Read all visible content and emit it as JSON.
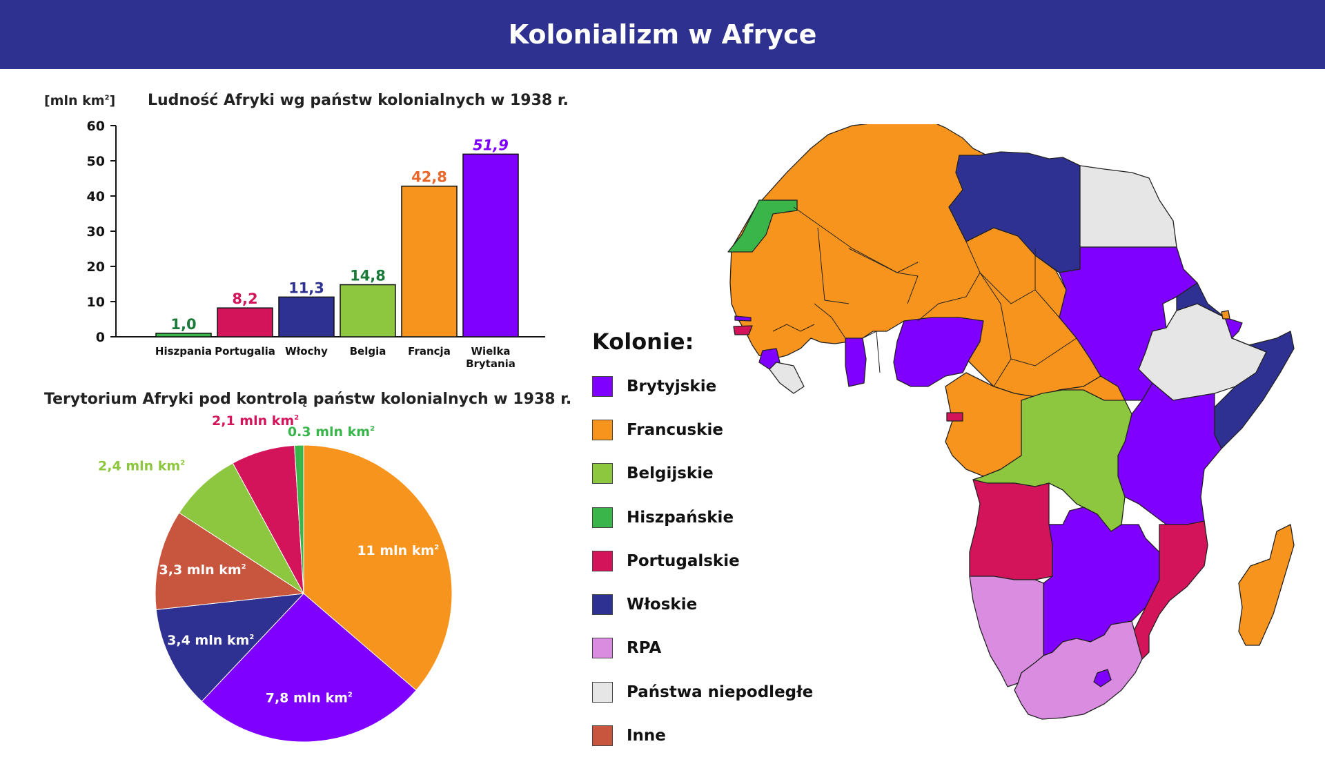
{
  "header": {
    "title": "Kolonializm w Afryce"
  },
  "bar_chart": {
    "unit_label": "[mln km",
    "unit_sup": "2",
    "unit_close": "]"
  },
  "pie_chart": {},
  "colors": {
    "header": "#2e318f",
    "brytyjskie": "#7f00ff",
    "francuskie": "#f7941d",
    "belgijskie": "#8dc63f",
    "hiszpanskie": "#39b54a",
    "portugalskie": "#d4145a",
    "wloskie": "#2e3192",
    "rpa": "#d98ce0",
    "niepodlegle": "#e6e6e6",
    "inne": "#c8553d"
  },
  "legend": {
    "title": "Kolonie:",
    "items": [
      {
        "label": "Brytyjskie",
        "color": "#7f00ff"
      },
      {
        "label": "Francuskie",
        "color": "#f7941d"
      },
      {
        "label": "Belgijskie",
        "color": "#8dc63f"
      },
      {
        "label": "Hiszpańskie",
        "color": "#39b54a"
      },
      {
        "label": "Portugalskie",
        "color": "#d4145a"
      },
      {
        "label": "Włoskie",
        "color": "#2e3192"
      },
      {
        "label": "RPA",
        "color": "#d98ce0"
      },
      {
        "label": "Państwa niepodległe",
        "color": "#e6e6e6"
      },
      {
        "label": "Inne",
        "color": "#c8553d"
      }
    ]
  },
  "chart_data": [
    {
      "type": "bar",
      "title": "Ludność Afryki wg państw kolonialnych w 1938 r.",
      "ylabel": "[mln km²]",
      "ylim": [
        0,
        60
      ],
      "yticks": [
        "0",
        "10",
        "20",
        "30",
        "40",
        "50",
        "60"
      ],
      "categories": [
        {
          "lines": [
            "Hiszpania"
          ]
        },
        {
          "lines": [
            "Portugalia"
          ]
        },
        {
          "lines": [
            "Włochy"
          ]
        },
        {
          "lines": [
            "Belgia"
          ]
        },
        {
          "lines": [
            "Francja"
          ]
        },
        {
          "lines": [
            "Wielka",
            "Brytania"
          ]
        }
      ],
      "values": [
        1.0,
        8.2,
        11.3,
        14.8,
        42.8,
        51.9
      ],
      "value_labels": [
        "1,0",
        "8,2",
        "11,3",
        "14,8",
        "42,8",
        "51,9"
      ],
      "colors": [
        "#39b54a",
        "#d4145a",
        "#2e3192",
        "#8dc63f",
        "#f7941d",
        "#7f00ff"
      ],
      "label_colors": [
        "#1a7a3a",
        "#d4145a",
        "#2e3192",
        "#1a7a3a",
        "#e8672a",
        "#7f00ff"
      ],
      "grid": false
    },
    {
      "type": "pie",
      "title": "Terytorium Afryki pod kontrolą państw kolonialnych w 1938 r.",
      "slices": [
        {
          "value": 11,
          "label": "11 mln km",
          "sup": "2",
          "color": "#f7941d",
          "label_color": "#ffffff",
          "inside": true
        },
        {
          "value": 7.8,
          "label": "7,8 mln km",
          "sup": "2",
          "color": "#7f00ff",
          "label_color": "#ffffff",
          "inside": true
        },
        {
          "value": 3.4,
          "label": "3,4 mln km",
          "sup": "2",
          "color": "#2e3192",
          "label_color": "#ffffff",
          "inside": true
        },
        {
          "value": 3.3,
          "label": "3,3 mln km",
          "sup": "2",
          "color": "#c8553d",
          "label_color": "#ffffff",
          "inside": true
        },
        {
          "value": 2.4,
          "label": "2,4 mln km",
          "sup": "2",
          "color": "#8dc63f",
          "label_color": "#8dc63f",
          "inside": false
        },
        {
          "value": 2.1,
          "label": "2,1 mln km",
          "sup": "2",
          "color": "#d4145a",
          "label_color": "#d4145a",
          "inside": false
        },
        {
          "value": 0.3,
          "label": "0.3 mln km",
          "sup": "2",
          "color": "#39b54a",
          "label_color": "#39b54a",
          "inside": false
        }
      ]
    }
  ]
}
